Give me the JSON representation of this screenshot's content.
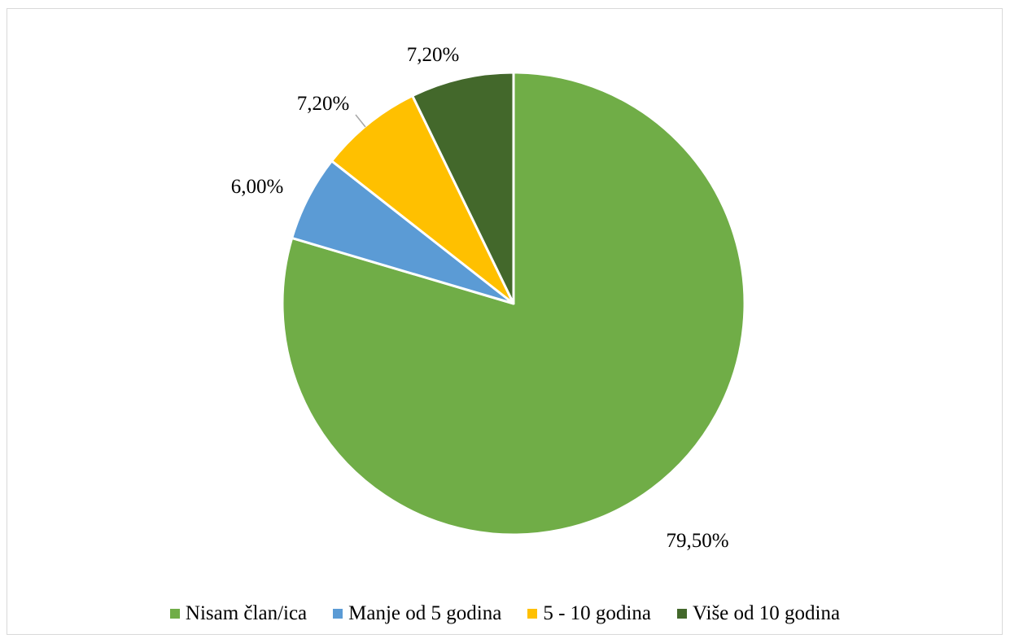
{
  "chart_data": {
    "type": "pie",
    "title": "",
    "series": [
      {
        "name": "Nisam član/ica",
        "value": 79.5,
        "label": "79,50%",
        "color": "#70ad47"
      },
      {
        "name": "Manje od 5 godina",
        "value": 6.0,
        "label": "6,00%",
        "color": "#5b9bd5"
      },
      {
        "name": "5 - 10 godina",
        "value": 7.2,
        "label": "7,20%",
        "color": "#ffc000"
      },
      {
        "name": "Više od 10 godina",
        "value": 7.2,
        "label": "7,20%",
        "color": "#43682b"
      }
    ],
    "legend_position": "bottom",
    "start_angle": "12 o'clock",
    "direction": "clockwise"
  }
}
